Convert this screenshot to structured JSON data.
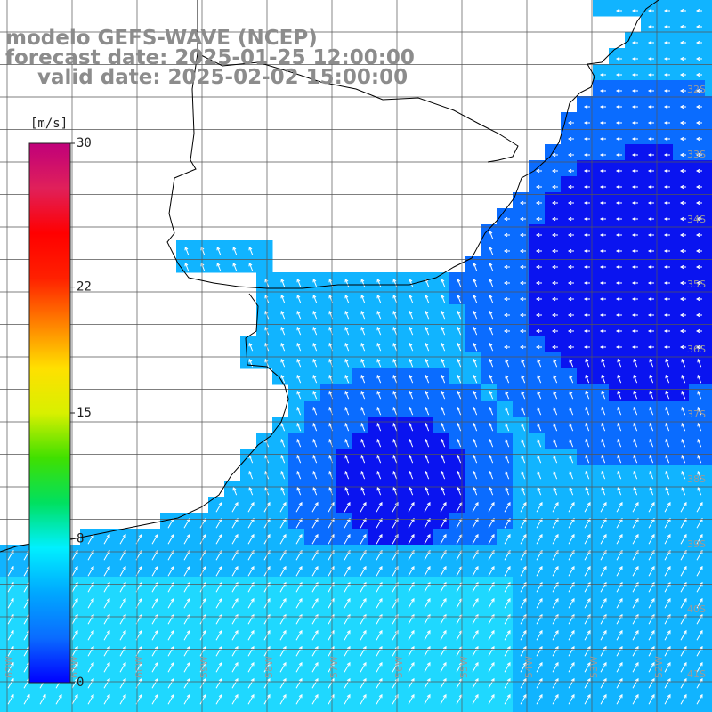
{
  "title": {
    "line1": "modelo GEFS-WAVE (NCEP)",
    "line2": "forecast date: 2025-01-25 12:00:00",
    "line3": "valid date: 2025-02-02 15:00:00"
  },
  "colorbar": {
    "unit": "[m/s]",
    "ticks": [
      "30",
      "22",
      "15",
      "8",
      "0"
    ],
    "tick_values": [
      30,
      22,
      15,
      8,
      0
    ],
    "min": 0,
    "max": 30,
    "colors": [
      "#0000ff",
      "#0a6cff",
      "#00a8ff",
      "#00f0ff",
      "#00e060",
      "#40e000",
      "#d8f000",
      "#ffe000",
      "#ff8000",
      "#ff2000",
      "#ff0000",
      "#e0205a",
      "#c0007a"
    ]
  },
  "lat_labels": [
    "32S",
    "33S",
    "34S",
    "35S",
    "36S",
    "37S",
    "38S",
    "39S",
    "40S",
    "41S"
  ],
  "lon_labels": [
    "62W",
    "61W",
    "60W",
    "59W",
    "58W",
    "57W",
    "56W",
    "55W",
    "54W",
    "53W",
    "52W"
  ],
  "colors": {
    "land": "#ffffff",
    "grid": "#555555",
    "coast": "#000000",
    "label": "#9a9a9a",
    "water_dark": "#0a14f0",
    "water_mid": "#0a6cff",
    "water_light": "#11b4ff",
    "water_cyan": "#1fd8ff",
    "arrow": "#ffffff"
  }
}
